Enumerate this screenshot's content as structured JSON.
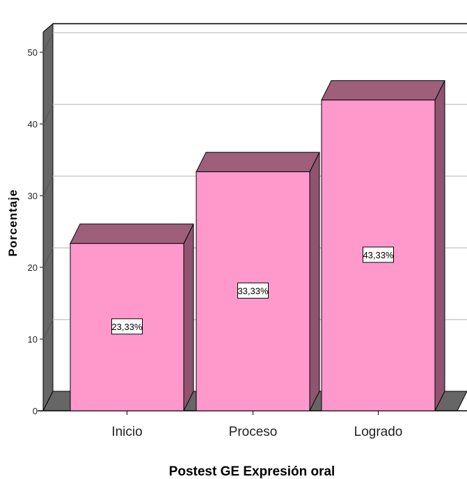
{
  "chart_data": {
    "type": "bar",
    "categories": [
      "Inicio",
      "Proceso",
      "Logrado"
    ],
    "values": [
      23.33,
      33.33,
      43.33
    ],
    "data_labels": [
      "23,33%",
      "33,33%",
      "43,33%"
    ],
    "title": "",
    "xlabel": "Postest GE Expresión oral",
    "ylabel": "Porcentaje",
    "ylim": [
      0,
      50
    ],
    "yticks": [
      "0",
      "10",
      "20",
      "30",
      "40",
      "50"
    ],
    "grid": true,
    "legend": "none",
    "style": "3d",
    "colors": {
      "bar_front": "#FF99CC",
      "bar_top": "#9E5F7B",
      "bar_side": "#8E5470",
      "wall": "#666666",
      "grid": "#cccccc"
    }
  }
}
